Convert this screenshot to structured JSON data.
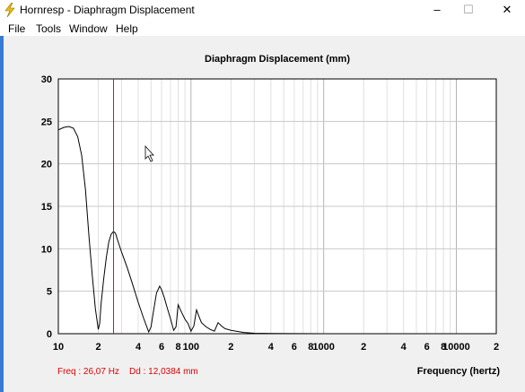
{
  "window": {
    "title": "Hornresp - Diaphragm Displacement",
    "minimize": "–",
    "maximize": "☐",
    "close": "✕"
  },
  "menu": [
    "File",
    "Tools",
    "Window",
    "Help"
  ],
  "status": {
    "freq": "Freq : 26,07 Hz",
    "dd": "Dd : 12,0384 mm",
    "xlabel": "Frequency (hertz)"
  },
  "chart_data": {
    "type": "line",
    "title": "Diaphragm Displacement (mm)",
    "xlabel": "Frequency (hertz)",
    "ylabel": "",
    "x_scale": "log",
    "xlim": [
      10,
      20000
    ],
    "ylim": [
      0,
      30
    ],
    "y_ticks": [
      0,
      5,
      10,
      15,
      20,
      25,
      30
    ],
    "x_tick_labels": [
      {
        "value": 10,
        "label": "10"
      },
      {
        "value": 20,
        "label": "2"
      },
      {
        "value": 40,
        "label": "4"
      },
      {
        "value": 60,
        "label": "6"
      },
      {
        "value": 80,
        "label": "8"
      },
      {
        "value": 100,
        "label": "100"
      },
      {
        "value": 200,
        "label": "2"
      },
      {
        "value": 400,
        "label": "4"
      },
      {
        "value": 600,
        "label": "6"
      },
      {
        "value": 800,
        "label": "8"
      },
      {
        "value": 1000,
        "label": "1000"
      },
      {
        "value": 2000,
        "label": "2"
      },
      {
        "value": 4000,
        "label": "4"
      },
      {
        "value": 6000,
        "label": "6"
      },
      {
        "value": 8000,
        "label": "8"
      },
      {
        "value": 10000,
        "label": "10000"
      },
      {
        "value": 20000,
        "label": "2"
      }
    ],
    "cursor_x": 26.07,
    "grid": true,
    "colors": {
      "line": "#000000",
      "cursor": "#ff0000",
      "grid": "#c8c8c8"
    },
    "series": [
      {
        "x": [
          10,
          11,
          12,
          13,
          14,
          15,
          16,
          17,
          18,
          19,
          20,
          20.5,
          21,
          22,
          23,
          24,
          25,
          26.07,
          27,
          28,
          30,
          33,
          36,
          40,
          44,
          48,
          50,
          52,
          55,
          58,
          60,
          63,
          66,
          70,
          74,
          77,
          80,
          85,
          90,
          95,
          100,
          105,
          110,
          115,
          120,
          130,
          140,
          150,
          160,
          170,
          180,
          200,
          250,
          300,
          400,
          600,
          1000,
          2000,
          5000,
          10000,
          20000
        ],
        "y": [
          24.0,
          24.3,
          24.4,
          24.2,
          23.2,
          21.0,
          17.0,
          11.5,
          7.0,
          3.0,
          0.5,
          1.2,
          3.5,
          6.5,
          9.0,
          10.8,
          11.7,
          12.04,
          11.8,
          11.0,
          9.6,
          7.8,
          6.0,
          3.7,
          1.8,
          0.2,
          0.8,
          2.5,
          4.8,
          5.6,
          5.2,
          4.2,
          3.1,
          1.8,
          0.4,
          0.8,
          3.4,
          2.5,
          1.7,
          1.2,
          0.3,
          0.9,
          2.8,
          2.0,
          1.3,
          0.8,
          0.5,
          0.3,
          1.3,
          0.9,
          0.6,
          0.4,
          0.15,
          0.05,
          0.02,
          0.01,
          0.0,
          0.0,
          0.0,
          0.0,
          0.0
        ]
      }
    ]
  }
}
